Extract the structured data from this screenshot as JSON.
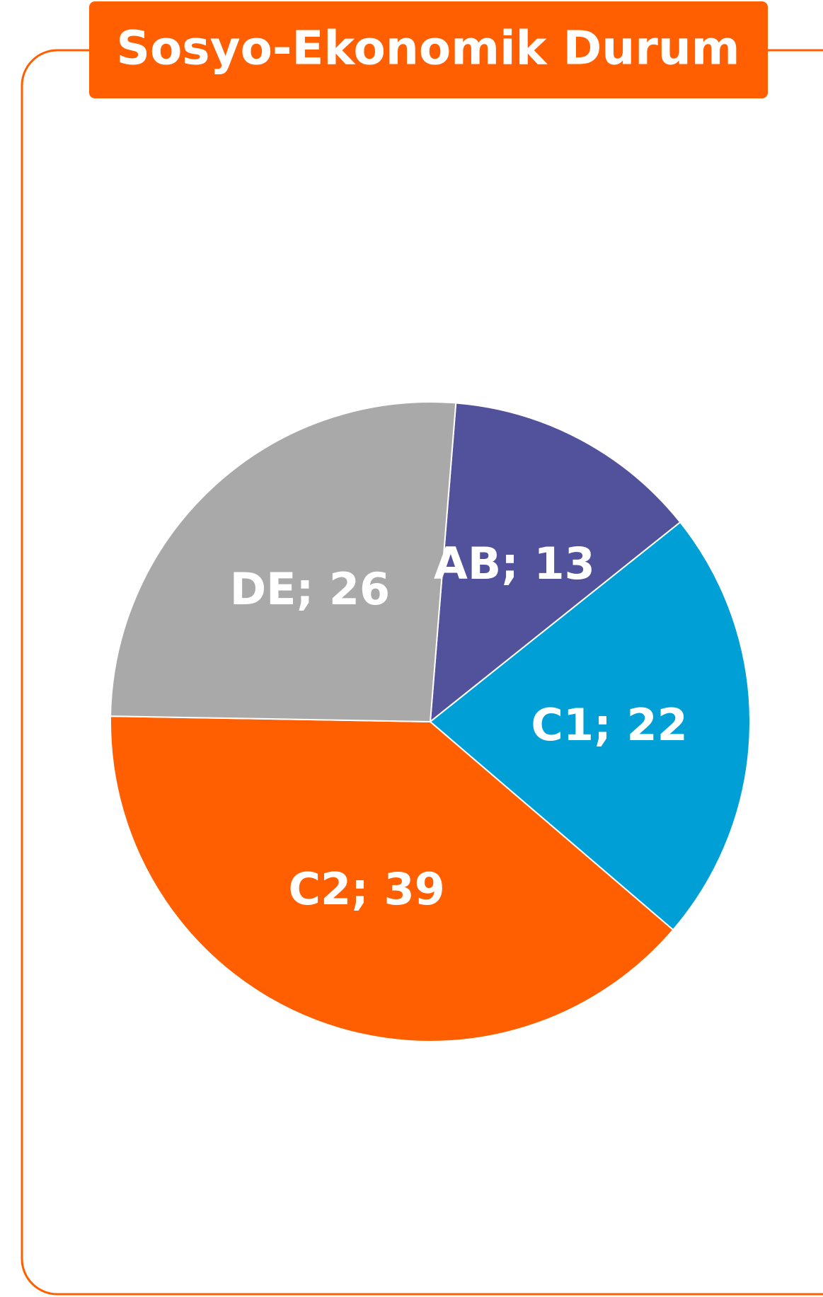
{
  "chart_data": {
    "type": "pie",
    "title": "Sosyo-Ekonomik Durum",
    "categories": [
      "AB",
      "C1",
      "C2",
      "DE"
    ],
    "values": [
      13,
      22,
      39,
      26
    ],
    "value_labels": [
      "AB; 13",
      "C1; 22",
      "C2; 39",
      "DE; 26"
    ],
    "colors": [
      "#52519b",
      "#009fd6",
      "#ff5f00",
      "#a9a9a9"
    ]
  }
}
